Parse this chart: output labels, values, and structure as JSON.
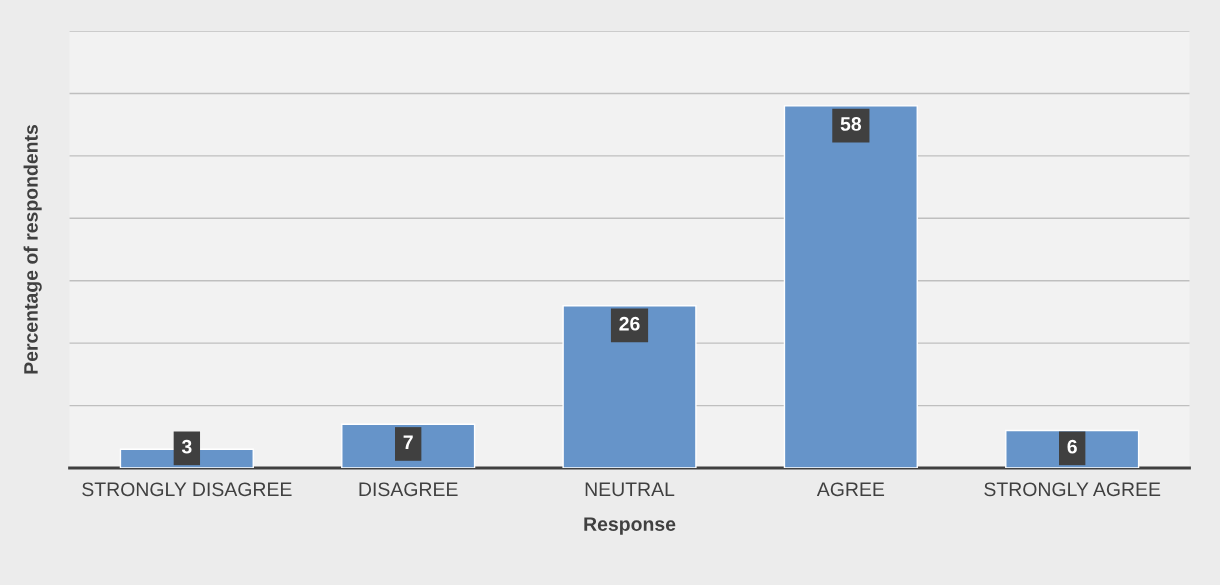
{
  "chart_data": {
    "type": "bar",
    "xlabel": "Response",
    "ylabel": "Percentage of respondents",
    "categories": [
      "STRONGLY DISAGREE",
      "DISAGREE",
      "NEUTRAL",
      "AGREE",
      "STRONGLY AGREE"
    ],
    "values": [
      3,
      7,
      26,
      58,
      6
    ],
    "color": "#6694c9",
    "ylim": [
      0,
      70
    ],
    "yticks": [
      {
        "value": 0,
        "label": null
      },
      {
        "value": 10,
        "label": null
      },
      {
        "value": 20,
        "label": null
      },
      {
        "value": 30,
        "label": null
      },
      {
        "value": 40,
        "label": null
      },
      {
        "value": 50,
        "label": null
      },
      {
        "value": 60,
        "label": null
      },
      {
        "value": 70,
        "label": null
      }
    ],
    "tick_labels": "x",
    "grid": "y",
    "data_labels": true
  }
}
